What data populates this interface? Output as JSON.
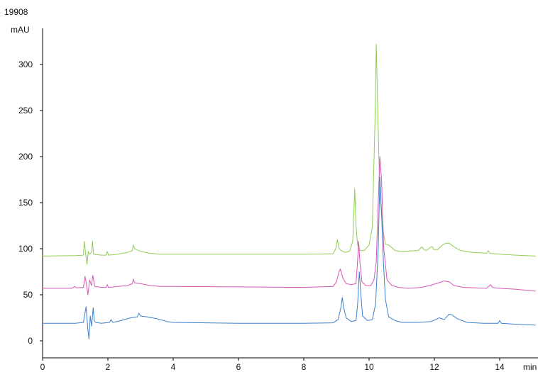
{
  "chart_data": {
    "type": "line",
    "title": "19908",
    "xlabel": "min",
    "ylabel": "mAU",
    "xlim": [
      0,
      15.1
    ],
    "ylim": [
      -15,
      340
    ],
    "xticks": [
      0,
      2,
      4,
      6,
      8,
      10,
      12,
      14
    ],
    "yticks": [
      0,
      50,
      100,
      150,
      200,
      250,
      300
    ],
    "grid": false,
    "series": [
      {
        "color": "#8fce52",
        "x": [
          0.0,
          1.0,
          1.25,
          1.28,
          1.32,
          1.36,
          1.4,
          1.44,
          1.5,
          1.53,
          1.56,
          1.8,
          1.95,
          1.98,
          2.02,
          2.3,
          2.6,
          2.75,
          2.78,
          2.82,
          3.0,
          3.3,
          3.6,
          4.0,
          6.0,
          8.0,
          8.9,
          8.98,
          9.03,
          9.08,
          9.15,
          9.25,
          9.4,
          9.5,
          9.56,
          9.6,
          9.65,
          9.72,
          9.85,
          10.0,
          10.1,
          10.18,
          10.22,
          10.26,
          10.32,
          10.4,
          10.5,
          10.6,
          10.8,
          11.0,
          11.5,
          11.62,
          11.68,
          11.75,
          11.9,
          11.94,
          11.98,
          12.1,
          12.25,
          12.35,
          12.45,
          12.6,
          12.8,
          13.2,
          13.6,
          13.65,
          13.7,
          14.0,
          14.5,
          15.1
        ],
        "y": [
          92,
          92.5,
          93,
          108,
          94,
          83,
          97,
          94,
          96,
          108,
          94,
          93,
          93,
          97,
          93,
          94,
          96,
          98,
          104,
          100,
          97,
          95,
          94,
          94,
          94,
          94,
          94.5,
          100,
          110,
          100,
          98,
          96,
          97,
          108,
          165,
          125,
          104,
          98,
          98,
          104,
          124,
          238,
          322,
          258,
          170,
          126,
          105,
          104,
          98,
          97,
          98,
          102,
          99,
          98,
          102,
          102,
          99,
          99,
          104,
          106,
          106,
          102,
          98,
          96,
          95,
          98,
          95,
          94,
          93,
          92
        ]
      },
      {
        "color": "#d456b8",
        "x": [
          0.0,
          0.9,
          0.98,
          1.05,
          1.25,
          1.3,
          1.35,
          1.39,
          1.44,
          1.5,
          1.54,
          1.6,
          1.8,
          1.95,
          1.98,
          2.02,
          2.3,
          2.6,
          2.75,
          2.78,
          2.82,
          3.0,
          3.3,
          3.6,
          4.0,
          6.0,
          8.0,
          8.9,
          9.0,
          9.08,
          9.12,
          9.2,
          9.3,
          9.45,
          9.6,
          9.65,
          9.68,
          9.72,
          9.78,
          9.9,
          10.05,
          10.15,
          10.22,
          10.28,
          10.33,
          10.38,
          10.45,
          10.55,
          10.7,
          10.9,
          11.2,
          11.6,
          11.85,
          12.05,
          12.3,
          12.45,
          12.6,
          12.9,
          13.6,
          13.72,
          13.78,
          14.0,
          14.5,
          15.1
        ],
        "y": [
          57,
          57,
          59,
          57.5,
          58,
          70,
          60,
          50,
          66,
          60,
          71,
          59,
          58,
          58,
          61,
          58,
          59,
          60,
          62,
          67,
          63,
          62,
          60,
          59,
          59,
          58.5,
          58,
          59,
          64,
          75,
          78,
          68,
          62,
          61,
          62,
          88,
          108,
          85,
          64,
          60,
          60,
          66,
          86,
          150,
          200,
          175,
          100,
          66,
          60,
          58,
          57,
          58,
          60,
          62,
          65,
          64,
          60,
          58,
          57,
          61,
          58,
          57,
          56,
          54
        ]
      },
      {
        "color": "#3b7fd0",
        "x": [
          0.0,
          1.0,
          1.25,
          1.33,
          1.38,
          1.42,
          1.46,
          1.5,
          1.55,
          1.58,
          1.62,
          1.8,
          2.05,
          2.1,
          2.15,
          2.4,
          2.7,
          2.9,
          2.95,
          3.0,
          3.2,
          3.5,
          3.8,
          4.0,
          6.0,
          8.0,
          8.9,
          9.05,
          9.13,
          9.18,
          9.22,
          9.3,
          9.45,
          9.6,
          9.65,
          9.7,
          9.74,
          9.8,
          9.95,
          10.1,
          10.2,
          10.28,
          10.33,
          10.38,
          10.44,
          10.5,
          10.6,
          10.8,
          11.0,
          11.5,
          11.9,
          12.1,
          12.15,
          12.3,
          12.45,
          12.55,
          12.7,
          13.0,
          13.5,
          13.95,
          14.0,
          14.05,
          14.5,
          15.1
        ],
        "y": [
          19,
          19,
          20,
          37,
          15,
          2,
          27,
          16,
          36,
          22,
          20,
          19,
          20,
          23,
          20,
          22,
          25,
          26,
          30,
          27,
          26,
          24,
          21,
          20,
          19,
          19,
          19.5,
          23,
          35,
          47,
          36,
          25,
          21,
          22,
          40,
          75,
          55,
          27,
          22,
          23,
          40,
          100,
          178,
          140,
          85,
          45,
          26,
          22,
          20,
          20,
          21,
          24,
          25,
          23,
          29,
          28,
          24,
          20,
          19,
          19,
          22,
          19,
          18,
          17
        ]
      }
    ]
  }
}
